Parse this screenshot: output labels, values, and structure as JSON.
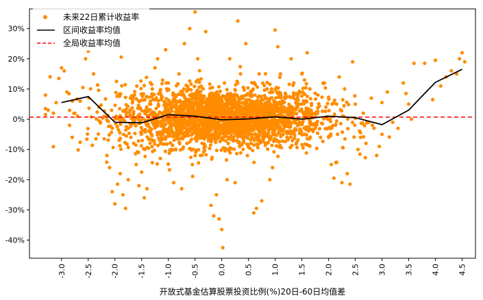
{
  "chart_data": {
    "type": "scatter",
    "title": "",
    "xlabel": "开放式基金估算股票投资比例(%)20日-60日均值差",
    "ylabel": "",
    "xlim": [
      -3.6,
      4.75
    ],
    "ylim": [
      -46,
      36.5
    ],
    "x_ticks": [
      -3.0,
      -2.5,
      -2.0,
      -1.5,
      -1.0,
      -0.5,
      0.0,
      0.5,
      1.0,
      1.5,
      2.0,
      2.5,
      3.0,
      3.5,
      4.0,
      4.5
    ],
    "x_tick_labels": [
      "-3.0",
      "-2.5",
      "-2.0",
      "-1.5",
      "-1.0",
      "-0.5",
      "0.0",
      "0.5",
      "1.0",
      "1.5",
      "2.0",
      "2.5",
      "3.0",
      "3.5",
      "4.0",
      "4.5"
    ],
    "y_ticks": [
      -40,
      -30,
      -20,
      -10,
      0,
      10,
      20,
      30
    ],
    "y_tick_labels": [
      "-40%",
      "-30%",
      "-20%",
      "-10%",
      "0%",
      "10%",
      "20%",
      "30%"
    ],
    "legend": {
      "position": "top-left",
      "entries": [
        {
          "label": "未来22日累计收益率",
          "style": "scatter",
          "color": "#ff8c00"
        },
        {
          "label": "区间收益率均值",
          "style": "line",
          "color": "#000000"
        },
        {
          "label": "全局收益率均值",
          "style": "dashed",
          "color": "#ff0000"
        }
      ]
    },
    "series": [
      {
        "name": "未来22日累计收益率",
        "kind": "scatter",
        "color": "#ff8c00",
        "points": [
          [
            -3.3,
            3.5
          ],
          [
            -3.25,
            3.0
          ],
          [
            -3.15,
            2.0
          ],
          [
            -3.1,
            5.5
          ],
          [
            -3.05,
            13.5
          ],
          [
            -3.0,
            17.0
          ],
          [
            -2.95,
            16.0
          ],
          [
            -2.9,
            9.0
          ],
          [
            -2.85,
            -2.0
          ],
          [
            -2.8,
            -6.0
          ],
          [
            -2.7,
            1.0
          ],
          [
            -2.65,
            6.0
          ],
          [
            -2.6,
            10.5
          ],
          [
            -2.55,
            20.0
          ],
          [
            -2.5,
            22.5
          ],
          [
            -2.45,
            29.0
          ],
          [
            -2.4,
            15.0
          ],
          [
            -2.3,
            4.0
          ],
          [
            -2.2,
            -6.5
          ],
          [
            -2.15,
            -12.0
          ],
          [
            -2.1,
            -16.0
          ],
          [
            -2.05,
            -24.0
          ],
          [
            -2.0,
            -28.0
          ],
          [
            -1.95,
            -21.5
          ],
          [
            -1.9,
            -18.0
          ],
          [
            -1.85,
            -25.0
          ],
          [
            -1.8,
            -29.5
          ],
          [
            -1.75,
            -20.0
          ],
          [
            -1.7,
            -6.0
          ],
          [
            -1.65,
            0.5
          ],
          [
            -1.6,
            -15.0
          ],
          [
            -1.55,
            -22.0
          ],
          [
            -1.5,
            -17.5
          ],
          [
            -1.45,
            -26.0
          ],
          [
            -1.4,
            -23.0
          ],
          [
            -1.35,
            5.0
          ],
          [
            -1.3,
            10.0
          ],
          [
            -1.25,
            17.0
          ],
          [
            -1.2,
            20.0
          ],
          [
            -1.15,
            -13.0
          ],
          [
            -1.1,
            -5.0
          ],
          [
            -1.05,
            23.0
          ],
          [
            -1.0,
            12.0
          ],
          [
            -0.95,
            -10.0
          ],
          [
            -0.9,
            -21.0
          ],
          [
            -0.85,
            6.0
          ],
          [
            -0.8,
            15.0
          ],
          [
            -0.75,
            -23.0
          ],
          [
            -0.7,
            25.0
          ],
          [
            -0.65,
            -8.0
          ],
          [
            -0.6,
            30.0
          ],
          [
            -0.55,
            -15.0
          ],
          [
            -0.5,
            35.5
          ],
          [
            -0.45,
            20.0
          ],
          [
            -0.4,
            -12.0
          ],
          [
            -0.35,
            10.0
          ],
          [
            -0.3,
            29.0
          ],
          [
            -0.25,
            -5.0
          ],
          [
            -0.2,
            -28.5
          ],
          [
            -0.15,
            -32.0
          ],
          [
            -0.1,
            -25.0
          ],
          [
            -0.05,
            -33.0
          ],
          [
            0.0,
            -36.5
          ],
          [
            0.02,
            -42.5
          ],
          [
            0.05,
            12.0
          ],
          [
            0.1,
            -20.0
          ],
          [
            0.15,
            20.0
          ],
          [
            0.2,
            8.0
          ],
          [
            0.25,
            -21.0
          ],
          [
            0.3,
            32.5
          ],
          [
            0.35,
            15.0
          ],
          [
            0.4,
            -10.0
          ],
          [
            0.45,
            25.0
          ],
          [
            0.5,
            5.0
          ],
          [
            0.55,
            -8.0
          ],
          [
            0.6,
            -31.0
          ],
          [
            0.65,
            -29.5
          ],
          [
            0.7,
            15.0
          ],
          [
            0.75,
            -27.0
          ],
          [
            0.8,
            -3.0
          ],
          [
            0.85,
            10.0
          ],
          [
            0.9,
            -20.0
          ],
          [
            0.95,
            -16.0
          ],
          [
            1.0,
            29.5
          ],
          [
            1.05,
            24.0
          ],
          [
            1.1,
            15.0
          ],
          [
            1.15,
            -5.0
          ],
          [
            1.2,
            8.0
          ],
          [
            1.25,
            -2.0
          ],
          [
            1.3,
            20.0
          ],
          [
            1.35,
            12.0
          ],
          [
            1.4,
            -8.0
          ],
          [
            1.45,
            5.0
          ],
          [
            1.5,
            15.0
          ],
          [
            1.55,
            -5.0
          ],
          [
            1.6,
            22.0
          ],
          [
            1.65,
            10.0
          ],
          [
            1.7,
            0.5
          ],
          [
            1.75,
            -3.0
          ],
          [
            1.8,
            8.0
          ],
          [
            1.85,
            -6.0
          ],
          [
            1.9,
            12.0
          ],
          [
            1.95,
            4.0
          ],
          [
            2.0,
            -6.0
          ],
          [
            2.05,
            -15.0
          ],
          [
            2.1,
            -19.5
          ],
          [
            2.15,
            5.0
          ],
          [
            2.2,
            14.0
          ],
          [
            2.25,
            -21.0
          ],
          [
            2.3,
            10.0
          ],
          [
            2.35,
            -18.0
          ],
          [
            2.4,
            -21.5
          ],
          [
            2.45,
            19.0
          ],
          [
            2.5,
            5.0
          ],
          [
            2.55,
            -10.0
          ],
          [
            2.6,
            -6.0
          ],
          [
            2.65,
            2.0
          ],
          [
            2.7,
            -8.0
          ],
          [
            2.75,
            -1.0
          ],
          [
            2.8,
            7.0
          ],
          [
            2.85,
            -3.0
          ],
          [
            2.9,
            -12.0
          ],
          [
            2.95,
            -9.0
          ],
          [
            3.0,
            -5.0
          ],
          [
            3.1,
            9.0
          ],
          [
            3.2,
            -1.0
          ],
          [
            3.3,
            -3.0
          ],
          [
            3.4,
            12.0
          ],
          [
            3.45,
            8.5
          ],
          [
            3.5,
            5.0
          ],
          [
            3.55,
            0.0
          ],
          [
            3.6,
            18.5
          ],
          [
            3.8,
            18.5
          ],
          [
            3.95,
            6.5
          ],
          [
            4.0,
            19.5
          ],
          [
            4.1,
            11.0
          ],
          [
            4.2,
            14.0
          ],
          [
            4.3,
            16.0
          ],
          [
            4.4,
            15.0
          ],
          [
            4.45,
            20.0
          ],
          [
            4.5,
            22.0
          ],
          [
            4.55,
            19.0
          ]
        ]
      },
      {
        "name": "区间收益率均值",
        "kind": "line",
        "color": "#000000",
        "x": [
          -3.0,
          -2.5,
          -2.0,
          -1.5,
          -1.0,
          -0.5,
          0.0,
          0.5,
          1.0,
          1.5,
          2.0,
          2.5,
          3.0,
          3.5,
          4.0,
          4.5
        ],
        "y": [
          5.5,
          7.5,
          -1.0,
          -1.2,
          1.5,
          1.0,
          -0.2,
          0.1,
          0.8,
          0.0,
          1.0,
          0.5,
          -1.8,
          3.0,
          12.2,
          16.5
        ]
      },
      {
        "name": "全局收益率均值",
        "kind": "hline",
        "color": "#ff0000",
        "y": 0.7
      }
    ],
    "grid": false
  }
}
